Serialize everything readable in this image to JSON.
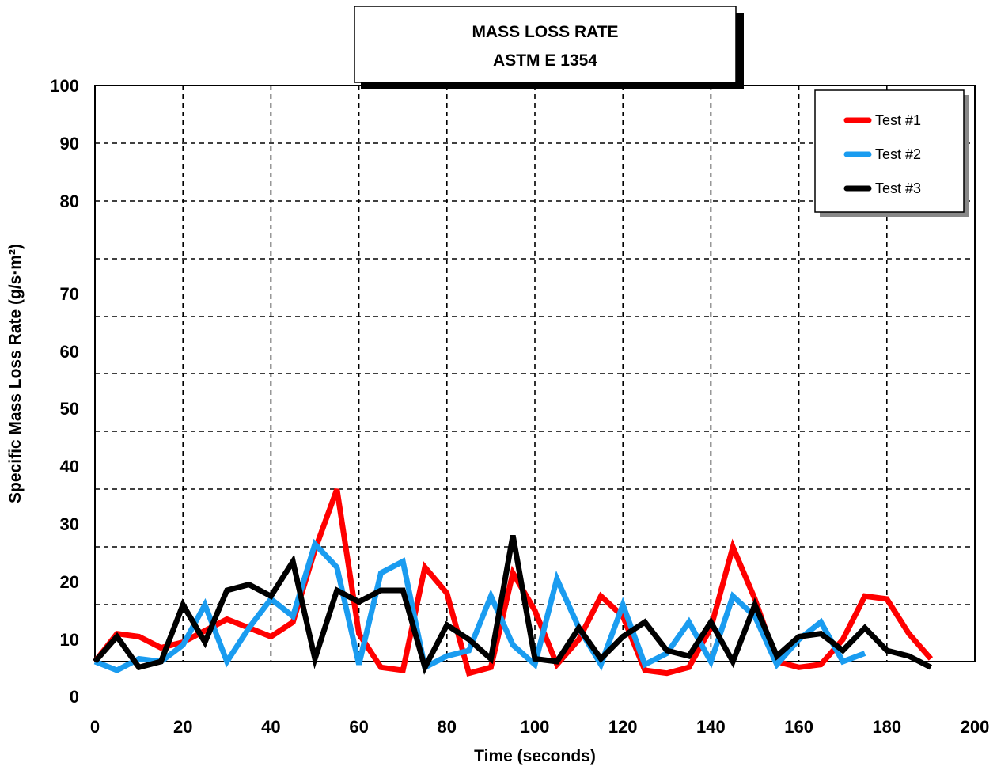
{
  "chart_data": {
    "type": "line",
    "title": "MASS LOSS RATE",
    "subtitle": "ASTM E 1354",
    "xlabel": "Time (seconds)",
    "ylabel": "Specific Mass Loss Rate (g/s·m²)",
    "xlim": [
      0,
      200
    ],
    "ylim": [
      0,
      100
    ],
    "x_ticks": [
      "0",
      "20",
      "40",
      "60",
      "80",
      "100",
      "120",
      "140",
      "160",
      "180",
      "200"
    ],
    "y_ticks": [
      {
        "label": "0",
        "value": 0
      },
      {
        "label": "10",
        "value": 10
      },
      {
        "label": "20",
        "value": 20
      },
      {
        "label": "30",
        "value": 30
      },
      {
        "label": "40",
        "value": 40
      },
      {
        "label": "50",
        "value": 50
      },
      {
        "label": "60",
        "value": 60
      },
      {
        "label": "70",
        "value": 70
      },
      {
        "label": "80",
        "value": 80
      },
      {
        "label": "90",
        "value": 90
      },
      {
        "label": "100",
        "value": 100
      }
    ],
    "grid": true,
    "legend_position": "top-right",
    "series": [
      {
        "name": "Test #1",
        "color": "#ff0000",
        "x": [
          0,
          5,
          10,
          15,
          20,
          25,
          30,
          35,
          40,
          45,
          50,
          55,
          60,
          65,
          70,
          75,
          80,
          85,
          90,
          95,
          100,
          105,
          110,
          115,
          120,
          125,
          130,
          135,
          140,
          145,
          150,
          155,
          160,
          165,
          170,
          175,
          180,
          185,
          190
        ],
        "y": [
          6,
          11,
          10.5,
          8.5,
          9.5,
          11.5,
          13.5,
          12,
          10.5,
          13,
          25.5,
          36,
          11,
          5,
          4.5,
          22.5,
          18,
          4,
          5,
          21.5,
          15,
          5.5,
          10,
          17.5,
          14,
          4.5,
          4,
          5,
          12,
          26,
          17,
          6,
          5,
          5.5,
          10,
          17.5,
          17,
          11,
          6.5
        ]
      },
      {
        "name": "Test #2",
        "color": "#1a9cf0",
        "x": [
          0,
          5,
          10,
          15,
          20,
          25,
          30,
          35,
          40,
          45,
          50,
          55,
          60,
          65,
          70,
          75,
          80,
          85,
          90,
          95,
          100,
          105,
          110,
          115,
          120,
          125,
          130,
          135,
          140,
          145,
          150,
          155,
          160,
          165,
          170,
          175
        ],
        "y": [
          6,
          4.5,
          6.5,
          6,
          9,
          16,
          6,
          12,
          17,
          14,
          26.5,
          22.5,
          5.5,
          21.5,
          23.5,
          5,
          7,
          8,
          17.5,
          9,
          5.5,
          20.5,
          12,
          5.5,
          16,
          5.5,
          7.5,
          13,
          6,
          17.5,
          14,
          5.5,
          10,
          13,
          6,
          7.5
        ]
      },
      {
        "name": "Test #3",
        "color": "#000000",
        "x": [
          0,
          5,
          10,
          15,
          20,
          25,
          30,
          35,
          40,
          45,
          50,
          55,
          60,
          65,
          70,
          75,
          80,
          85,
          90,
          95,
          100,
          105,
          110,
          115,
          120,
          125,
          130,
          135,
          140,
          145,
          150,
          155,
          160,
          165,
          170,
          175,
          180,
          185,
          190
        ],
        "y": [
          6,
          10.5,
          5,
          6,
          16,
          9.5,
          18.5,
          19.5,
          17.5,
          23.5,
          6.5,
          18.5,
          16.5,
          18.5,
          18.5,
          5,
          12.5,
          10,
          6.5,
          28,
          6.5,
          6,
          12,
          6.5,
          10.5,
          13,
          8,
          7,
          13,
          6,
          16,
          7,
          10.5,
          11,
          8,
          12,
          8,
          7,
          5
        ]
      }
    ]
  }
}
